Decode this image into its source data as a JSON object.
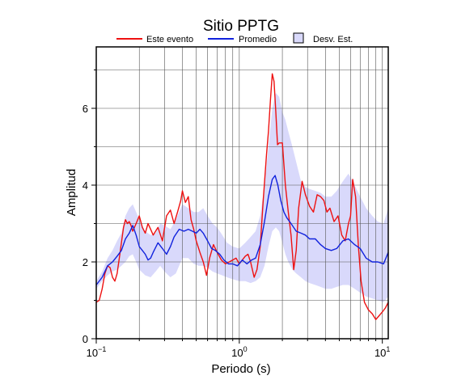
{
  "chart_data": {
    "type": "line",
    "title": "Sitio PPTG",
    "xlabel": "Periodo (s)",
    "ylabel": "Amplitud",
    "x_scale": "log",
    "xlim": [
      0.1,
      11
    ],
    "ylim": [
      0,
      7.6
    ],
    "grid": true,
    "legend_position": "top",
    "x_ticks": [
      {
        "value": 0.1,
        "base": "10",
        "exp": "−1"
      },
      {
        "value": 1,
        "base": "10",
        "exp": "0"
      },
      {
        "value": 10,
        "base": "10",
        "exp": "1"
      }
    ],
    "y_ticks": [
      0,
      2,
      4,
      6
    ],
    "series": [
      {
        "name": "Este evento",
        "color": "#ee1111",
        "x": [
          0.1,
          0.105,
          0.11,
          0.115,
          0.12,
          0.125,
          0.13,
          0.135,
          0.14,
          0.145,
          0.15,
          0.155,
          0.16,
          0.165,
          0.17,
          0.175,
          0.18,
          0.19,
          0.2,
          0.21,
          0.22,
          0.23,
          0.24,
          0.25,
          0.27,
          0.29,
          0.31,
          0.33,
          0.35,
          0.37,
          0.39,
          0.4,
          0.42,
          0.44,
          0.46,
          0.48,
          0.5,
          0.53,
          0.56,
          0.59,
          0.62,
          0.66,
          0.7,
          0.75,
          0.8,
          0.85,
          0.9,
          0.95,
          1.0,
          1.05,
          1.1,
          1.15,
          1.2,
          1.27,
          1.33,
          1.4,
          1.47,
          1.55,
          1.6,
          1.65,
          1.7,
          1.75,
          1.8,
          1.85,
          1.9,
          2.0,
          2.1,
          2.2,
          2.3,
          2.4,
          2.5,
          2.6,
          2.75,
          2.9,
          3.1,
          3.3,
          3.5,
          3.7,
          3.9,
          4.1,
          4.3,
          4.6,
          4.9,
          5.2,
          5.5,
          5.8,
          6.0,
          6.2,
          6.5,
          6.8,
          7.1,
          7.5,
          8.0,
          8.5,
          9.0,
          9.5,
          10.0,
          10.5,
          11.0
        ],
        "y": [
          0.95,
          1.0,
          1.3,
          1.7,
          1.9,
          1.85,
          1.6,
          1.5,
          1.7,
          2.1,
          2.5,
          2.9,
          3.1,
          3.0,
          3.05,
          2.95,
          2.8,
          3.0,
          3.2,
          2.9,
          2.75,
          3.0,
          2.85,
          2.7,
          2.9,
          2.55,
          3.2,
          3.35,
          3.0,
          3.3,
          3.6,
          3.85,
          3.55,
          3.7,
          3.1,
          2.85,
          2.55,
          2.25,
          2.0,
          1.65,
          2.1,
          2.45,
          2.25,
          2.05,
          1.95,
          2.0,
          2.05,
          2.1,
          1.95,
          2.05,
          2.15,
          2.2,
          2.0,
          1.6,
          1.8,
          2.4,
          3.6,
          4.8,
          5.4,
          6.2,
          6.9,
          6.7,
          5.9,
          5.05,
          5.1,
          5.1,
          4.0,
          3.3,
          2.7,
          1.8,
          2.3,
          3.4,
          4.1,
          3.75,
          3.45,
          3.3,
          3.75,
          3.7,
          3.6,
          3.3,
          3.4,
          3.05,
          3.2,
          2.7,
          2.55,
          3.0,
          3.2,
          4.15,
          3.7,
          2.4,
          1.5,
          0.95,
          0.75,
          0.65,
          0.5,
          0.6,
          0.7,
          0.8,
          0.95
        ]
      },
      {
        "name": "Promedio",
        "color": "#1122dd",
        "x": [
          0.1,
          0.11,
          0.12,
          0.13,
          0.14,
          0.15,
          0.16,
          0.17,
          0.18,
          0.19,
          0.2,
          0.21,
          0.22,
          0.23,
          0.24,
          0.25,
          0.27,
          0.29,
          0.31,
          0.33,
          0.35,
          0.38,
          0.41,
          0.44,
          0.47,
          0.5,
          0.53,
          0.56,
          0.6,
          0.64,
          0.68,
          0.73,
          0.78,
          0.84,
          0.9,
          0.97,
          1.05,
          1.13,
          1.22,
          1.3,
          1.4,
          1.5,
          1.6,
          1.7,
          1.78,
          1.86,
          1.95,
          2.05,
          2.15,
          2.3,
          2.5,
          2.7,
          2.9,
          3.1,
          3.4,
          3.7,
          4.0,
          4.4,
          4.8,
          5.3,
          5.8,
          6.4,
          7.0,
          7.7,
          8.5,
          9.3,
          10.2,
          11.0
        ],
        "y": [
          1.4,
          1.6,
          1.9,
          2.0,
          2.15,
          2.3,
          2.6,
          2.75,
          2.95,
          2.7,
          2.4,
          2.3,
          2.2,
          2.05,
          2.1,
          2.25,
          2.5,
          2.35,
          2.2,
          2.4,
          2.65,
          2.85,
          2.8,
          2.85,
          2.8,
          2.75,
          2.85,
          2.75,
          2.55,
          2.35,
          2.3,
          2.2,
          2.05,
          1.95,
          1.95,
          1.9,
          2.05,
          1.95,
          2.05,
          2.1,
          2.45,
          3.05,
          3.7,
          4.15,
          4.25,
          4.0,
          3.6,
          3.3,
          3.15,
          3.0,
          2.8,
          2.75,
          2.7,
          2.6,
          2.6,
          2.45,
          2.35,
          2.3,
          2.35,
          2.55,
          2.6,
          2.45,
          2.35,
          2.1,
          2.0,
          2.0,
          1.95,
          2.25
        ]
      }
    ],
    "band": {
      "name": "Desv. Est.",
      "color": "#d9d9fb",
      "x": [
        0.1,
        0.11,
        0.12,
        0.13,
        0.14,
        0.15,
        0.16,
        0.17,
        0.18,
        0.19,
        0.2,
        0.22,
        0.24,
        0.26,
        0.28,
        0.3,
        0.33,
        0.36,
        0.4,
        0.44,
        0.48,
        0.52,
        0.56,
        0.6,
        0.65,
        0.7,
        0.76,
        0.82,
        0.9,
        1.0,
        1.1,
        1.2,
        1.3,
        1.4,
        1.5,
        1.6,
        1.7,
        1.8,
        1.9,
        2.0,
        2.1,
        2.2,
        2.35,
        2.5,
        2.7,
        2.9,
        3.1,
        3.4,
        3.7,
        4.0,
        4.4,
        4.8,
        5.3,
        5.8,
        6.4,
        7.0,
        7.7,
        8.5,
        9.3,
        10.2,
        11.0
      ],
      "lower": [
        1.3,
        1.5,
        1.65,
        1.75,
        1.8,
        1.9,
        2.0,
        2.15,
        2.2,
        2.0,
        1.8,
        1.65,
        1.6,
        1.75,
        1.9,
        1.75,
        1.6,
        1.7,
        2.1,
        2.1,
        1.95,
        1.9,
        1.9,
        1.85,
        1.75,
        1.7,
        1.65,
        1.6,
        1.55,
        1.5,
        1.5,
        1.45,
        1.5,
        1.6,
        1.9,
        2.4,
        2.8,
        2.9,
        2.8,
        2.5,
        2.2,
        2.0,
        1.8,
        1.7,
        1.6,
        1.5,
        1.45,
        1.4,
        1.35,
        1.3,
        1.3,
        1.35,
        1.4,
        1.4,
        1.3,
        1.2,
        1.1,
        1.05,
        1.0,
        0.95,
        1.1
      ],
      "upper": [
        1.5,
        1.75,
        2.1,
        2.3,
        2.55,
        2.75,
        3.2,
        3.4,
        3.5,
        3.3,
        3.1,
        2.8,
        2.7,
        2.75,
        3.0,
        2.95,
        2.85,
        3.1,
        3.5,
        3.4,
        3.3,
        3.3,
        3.4,
        3.2,
        3.0,
        2.9,
        2.7,
        2.5,
        2.4,
        2.35,
        2.5,
        2.65,
        2.8,
        3.2,
        4.0,
        5.0,
        6.0,
        6.4,
        6.3,
        5.9,
        5.7,
        5.4,
        5.0,
        4.6,
        4.1,
        3.95,
        3.9,
        3.85,
        3.8,
        3.7,
        3.7,
        3.85,
        4.1,
        4.3,
        4.0,
        3.7,
        3.4,
        3.2,
        3.05,
        3.0,
        3.4
      ]
    }
  }
}
